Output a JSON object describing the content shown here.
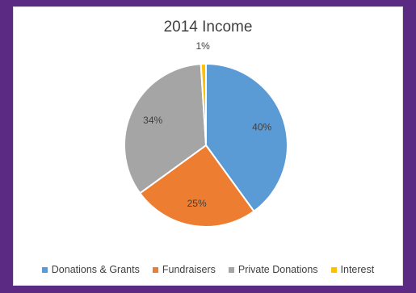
{
  "chart_data": {
    "type": "pie",
    "title": "2014 Income",
    "categories": [
      "Donations & Grants",
      "Fundraisers",
      "Private Donations",
      "Interest"
    ],
    "values": [
      40,
      25,
      34,
      1
    ],
    "labels": [
      "40%",
      "25%",
      "34%",
      "1%"
    ],
    "colors": [
      "#5b9bd5",
      "#ed7d31",
      "#a5a5a5",
      "#ffc000"
    ],
    "legend_position": "bottom"
  }
}
